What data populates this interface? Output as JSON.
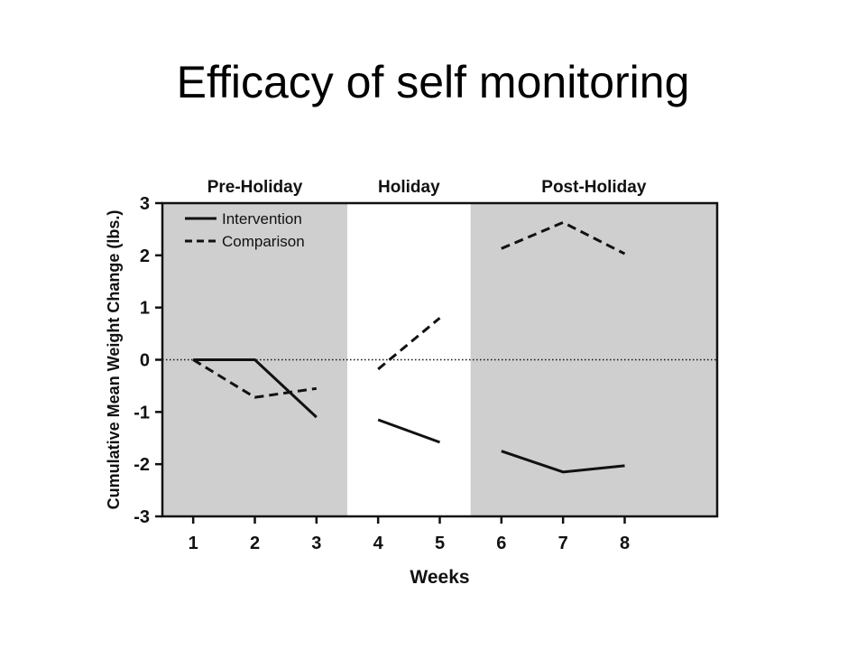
{
  "slide": {
    "title": "Efficacy of self monitoring"
  },
  "colors": {
    "shade": "#cfcfcf",
    "line": "#111111",
    "background": "#ffffff"
  },
  "chart_data": {
    "type": "line",
    "xlabel": "Weeks",
    "ylabel": "Cumulative Mean Weight Change (lbs.)",
    "xlim": [
      0.5,
      9.5
    ],
    "ylim": [
      -3,
      3
    ],
    "x_ticks": [
      1,
      2,
      3,
      4,
      5,
      6,
      7,
      8
    ],
    "y_ticks": [
      3,
      2,
      1,
      0,
      -1,
      -2,
      -3
    ],
    "grid": false,
    "zero_reference_line": "dotted",
    "legend_position": "top-left",
    "periods": [
      {
        "label": "Pre-Holiday",
        "x_start": 0.5,
        "x_end": 3.5,
        "shaded": true
      },
      {
        "label": "Holiday",
        "x_start": 3.5,
        "x_end": 5.5,
        "shaded": false
      },
      {
        "label": "Post-Holiday",
        "x_start": 5.5,
        "x_end": 9.5,
        "shaded": true
      }
    ],
    "series": [
      {
        "name": "Intervention",
        "style": "solid",
        "segments": [
          {
            "x": [
              1,
              2,
              3
            ],
            "y": [
              0,
              0,
              -1.1
            ]
          },
          {
            "x": [
              4,
              5
            ],
            "y": [
              -1.15,
              -1.58
            ]
          },
          {
            "x": [
              6,
              7,
              8
            ],
            "y": [
              -1.75,
              -2.15,
              -2.03
            ]
          }
        ]
      },
      {
        "name": "Comparison",
        "style": "dashed",
        "segments": [
          {
            "x": [
              1,
              2,
              3
            ],
            "y": [
              0,
              -0.72,
              -0.55
            ]
          },
          {
            "x": [
              4,
              5
            ],
            "y": [
              -0.18,
              0.8
            ]
          },
          {
            "x": [
              6,
              7,
              8
            ],
            "y": [
              2.13,
              2.63,
              2.03
            ]
          }
        ]
      }
    ]
  }
}
